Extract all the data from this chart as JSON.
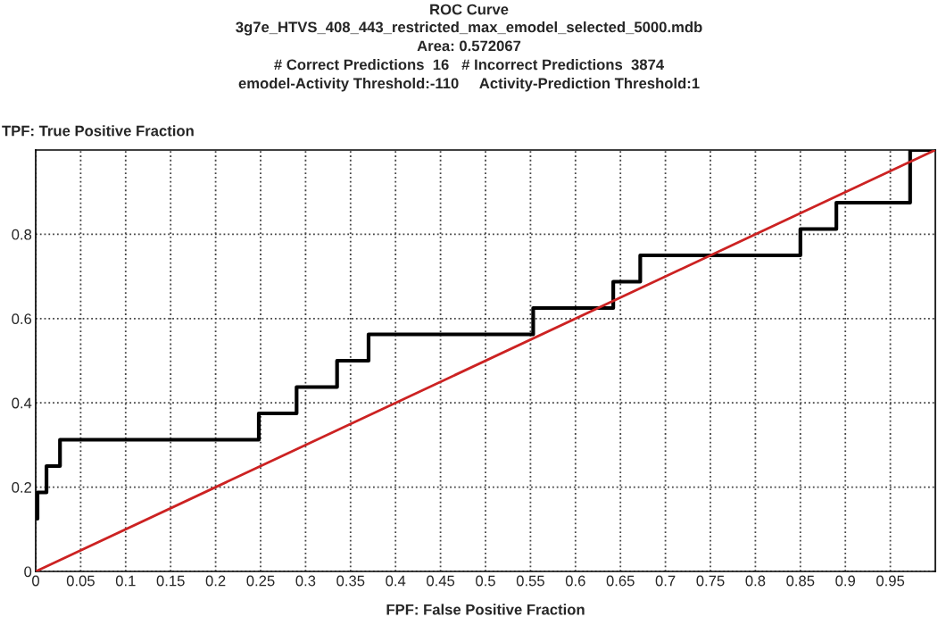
{
  "chart_data": {
    "type": "line",
    "title": "ROC Curve",
    "subtitle": "3g7e_HTVS_408_443_restricted_max_emodel_selected_5000.mdb\nArea: 0.572067\n# Correct Predictions  16   # Incorrect Predictions  3874\nemodel-Activity Threshold:-110     Activity-Prediction Threshold:1",
    "xlabel": "FPF: False Positive Fraction",
    "ylabel": "TPF: True Positive Fraction",
    "series": [
      {
        "color": "#000000",
        "x": [
          0.002,
          0.002,
          0.012,
          0.012,
          0.027,
          0.027,
          0.248,
          0.248,
          0.29,
          0.29,
          0.335,
          0.335,
          0.37,
          0.37,
          0.553,
          0.553,
          0.642,
          0.642,
          0.672,
          0.672,
          0.85,
          0.85,
          0.89,
          0.89,
          0.972,
          0.972,
          0.972,
          1.0
        ],
        "values": [
          0.125,
          0.1875,
          0.1875,
          0.25,
          0.25,
          0.3125,
          0.3125,
          0.375,
          0.375,
          0.4375,
          0.4375,
          0.5,
          0.5,
          0.5625,
          0.5625,
          0.625,
          0.625,
          0.6875,
          0.6875,
          0.75,
          0.75,
          0.8125,
          0.8125,
          0.875,
          0.875,
          0.9375,
          1.0,
          1.0
        ]
      },
      {
        "color": "#cc2222",
        "x": [
          0,
          1
        ],
        "values": [
          0,
          1
        ]
      }
    ],
    "xlim": [
      0,
      1
    ],
    "ylim": [
      0,
      1
    ],
    "xticks": [
      0,
      0.05,
      0.1,
      0.15,
      0.2,
      0.25,
      0.3,
      0.35,
      0.4,
      0.45,
      0.5,
      0.55,
      0.6,
      0.65,
      0.7,
      0.75,
      0.8,
      0.85,
      0.9,
      0.95
    ],
    "yticks": [
      0,
      0.2,
      0.4,
      0.6,
      0.8
    ],
    "grid": true,
    "line_style": "solid",
    "marker": "none"
  }
}
